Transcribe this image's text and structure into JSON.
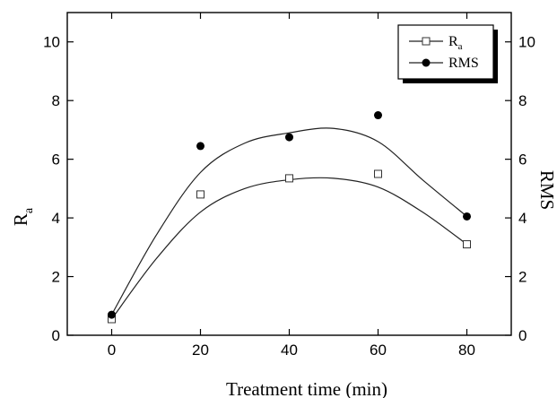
{
  "chart_data": {
    "type": "scatter",
    "x_label": "Treatment time (min)",
    "y_label_left": "R",
    "y_label_left_sub": "a",
    "y_label_right": "RMS",
    "xlim": [
      -10,
      90
    ],
    "ylim": [
      0,
      11
    ],
    "x_ticks": [
      0,
      20,
      40,
      60,
      80
    ],
    "y_ticks": [
      0,
      2,
      4,
      6,
      8,
      10
    ],
    "grid": false,
    "legend_position": "top-right",
    "series": [
      {
        "name": "R",
        "name_sub": "a",
        "marker": "open-square",
        "x": [
          0,
          20,
          40,
          60,
          80
        ],
        "y": [
          0.55,
          4.8,
          5.35,
          5.5,
          3.1
        ],
        "fit_curve": [
          [
            0,
            0.55
          ],
          [
            10,
            2.6
          ],
          [
            20,
            4.2
          ],
          [
            30,
            5.0
          ],
          [
            40,
            5.3
          ],
          [
            50,
            5.35
          ],
          [
            60,
            5.05
          ],
          [
            70,
            4.2
          ],
          [
            80,
            3.1
          ]
        ]
      },
      {
        "name": "RMS",
        "marker": "filled-circle",
        "x": [
          0,
          20,
          40,
          60,
          80
        ],
        "y": [
          0.7,
          6.45,
          6.75,
          7.5,
          4.05
        ],
        "fit_curve": [
          [
            0,
            0.7
          ],
          [
            10,
            3.4
          ],
          [
            20,
            5.55
          ],
          [
            30,
            6.55
          ],
          [
            40,
            6.9
          ],
          [
            50,
            7.05
          ],
          [
            60,
            6.6
          ],
          [
            70,
            5.3
          ],
          [
            80,
            4.05
          ]
        ]
      }
    ]
  }
}
